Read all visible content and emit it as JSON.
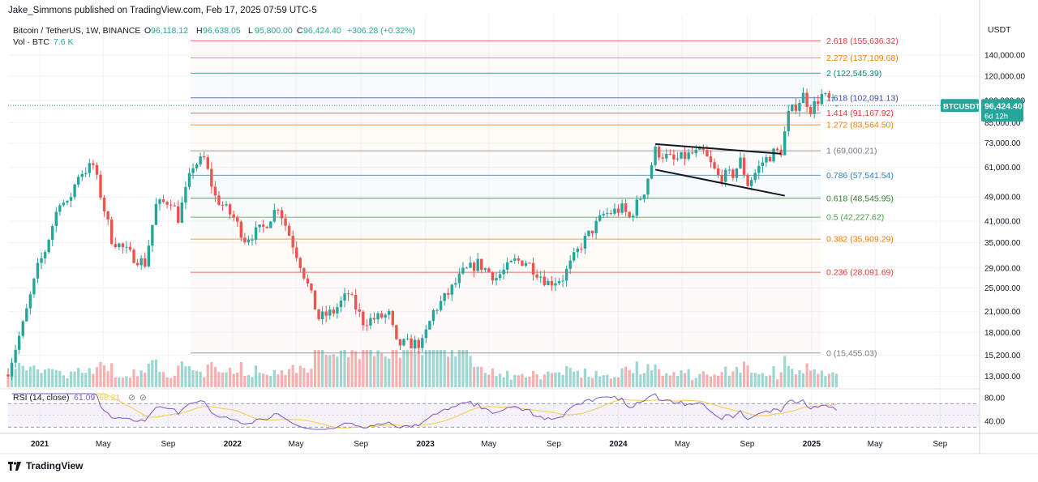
{
  "header": {
    "publisher_text": "Jake_Simmons published on TradingView.com, Feb 17, 2025 07:59 UTC-5",
    "symbol": "Bitcoin / TetherUS, 1W, BINANCE",
    "o_label": "O",
    "o_value": "96,118.12",
    "h_label": "H",
    "h_value": "96,638.05",
    "l_label": "L",
    "l_value": "95,800.00",
    "c_label": "C",
    "c_value": "96,424.40",
    "change": "+306.28 (+0.32%)",
    "vol_label": "Vol · BTC",
    "vol_value": "7.6 K",
    "currency": "USDT"
  },
  "price_badge": {
    "symbol": "BTCUSDT",
    "price": "96,424.40",
    "countdown": "6d 12h"
  },
  "logo_text": "TradingView",
  "colors": {
    "up": "#26a69a",
    "down": "#ef5350",
    "rsi": "#7e57c2",
    "rsi_ma": "#f9c94a"
  },
  "chart_data": {
    "type": "candlestick",
    "y_scale": "log",
    "ylim": [
      12000,
      178000
    ],
    "y_ticks": [
      {
        "value": 140000,
        "label": "140,000.00"
      },
      {
        "value": 120000,
        "label": "120,000.00"
      },
      {
        "value": 100000,
        "label": "100,000.00"
      },
      {
        "value": 85000,
        "label": "85,000.00"
      },
      {
        "value": 73000,
        "label": "73,000.00"
      },
      {
        "value": 61000,
        "label": "61,000.00"
      },
      {
        "value": 49000,
        "label": "49,000.00"
      },
      {
        "value": 41000,
        "label": "41,000.00"
      },
      {
        "value": 35000,
        "label": "35,000.00"
      },
      {
        "value": 29000,
        "label": "29,000.00"
      },
      {
        "value": 25000,
        "label": "25,000.00"
      },
      {
        "value": 21000,
        "label": "21,000.00"
      },
      {
        "value": 18000,
        "label": "18,000.00"
      },
      {
        "value": 15200,
        "label": "15,200.00"
      },
      {
        "value": 13000,
        "label": "13,000.00"
      }
    ],
    "x_ticks": [
      {
        "date": "2021-01",
        "label": "2021",
        "bold": true
      },
      {
        "date": "2021-05",
        "label": "May"
      },
      {
        "date": "2021-09",
        "label": "Sep"
      },
      {
        "date": "2022-01",
        "label": "2022",
        "bold": true
      },
      {
        "date": "2022-05",
        "label": "May"
      },
      {
        "date": "2022-09",
        "label": "Sep"
      },
      {
        "date": "2023-01",
        "label": "2023",
        "bold": true
      },
      {
        "date": "2023-05",
        "label": "May"
      },
      {
        "date": "2023-09",
        "label": "Sep"
      },
      {
        "date": "2024-01",
        "label": "2024",
        "bold": true
      },
      {
        "date": "2024-05",
        "label": "May"
      },
      {
        "date": "2024-09",
        "label": "Sep"
      },
      {
        "date": "2025-01",
        "label": "2025",
        "bold": true
      },
      {
        "date": "2025-05",
        "label": "May"
      },
      {
        "date": "2025-09",
        "label": "Sep"
      }
    ],
    "fib_levels": [
      {
        "ratio": "2.618",
        "price": 155636.32,
        "label": "2.618 (155,636.32)",
        "color": "#e53935"
      },
      {
        "ratio": "2.272",
        "price": 137109.68,
        "label": "2.272 (137,109.68)",
        "color": "#f57c00"
      },
      {
        "ratio": "2",
        "price": 122545.39,
        "label": "2 (122,545.39)",
        "color": "#00897b"
      },
      {
        "ratio": "1.618",
        "price": 102091.13,
        "label": "1.618 (102,091.13)",
        "color": "#3949ab"
      },
      {
        "ratio": "1.414",
        "price": 91167.92,
        "label": "1.414 (91,167.92)",
        "color": "#e53935"
      },
      {
        "ratio": "1.272",
        "price": 83564.5,
        "label": "1.272 (83,564.50)",
        "color": "#f57c00"
      },
      {
        "ratio": "1",
        "price": 69000.21,
        "label": "1 (69,000.21)",
        "color": "#787b86"
      },
      {
        "ratio": "0.786",
        "price": 57541.54,
        "label": "0.786 (57,541.54)",
        "color": "#2f7fc1"
      },
      {
        "ratio": "0.618",
        "price": 48545.95,
        "label": "0.618 (48,545.95)",
        "color": "#2e7d32"
      },
      {
        "ratio": "0.5",
        "price": 42227.62,
        "label": "0.5 (42,227.62)",
        "color": "#43a047"
      },
      {
        "ratio": "0.382",
        "price": 35909.29,
        "label": "0.382 (35,909.29)",
        "color": "#f57c00"
      },
      {
        "ratio": "0.236",
        "price": 28091.69,
        "label": "0.236 (28,091.69)",
        "color": "#e53935"
      },
      {
        "ratio": "0",
        "price": 15455.03,
        "label": "0 (15,455.03)",
        "color": "#787b86"
      }
    ],
    "trendlines": [
      {
        "start": [
          "2024-03-11",
          72500
        ],
        "end": [
          "2024-11-04",
          67500
        ]
      },
      {
        "start": [
          "2024-03-11",
          60000
        ],
        "end": [
          "2024-11-11",
          49500
        ]
      }
    ],
    "close_path": [
      [
        "2020-11-02",
        13600
      ],
      [
        "2020-11-30",
        19000
      ],
      [
        "2020-12-28",
        29000
      ],
      [
        "2021-01-11",
        33000
      ],
      [
        "2021-02-08",
        48000
      ],
      [
        "2021-02-22",
        46000
      ],
      [
        "2021-03-15",
        58000
      ],
      [
        "2021-04-12",
        62000
      ],
      [
        "2021-05-17",
        36000
      ],
      [
        "2021-06-21",
        32000
      ],
      [
        "2021-07-19",
        30000
      ],
      [
        "2021-08-09",
        46000
      ],
      [
        "2021-09-06",
        48000
      ],
      [
        "2021-09-20",
        42000
      ],
      [
        "2021-10-18",
        62000
      ],
      [
        "2021-11-08",
        65000
      ],
      [
        "2021-11-29",
        49000
      ],
      [
        "2022-01-03",
        42000
      ],
      [
        "2022-01-24",
        36000
      ],
      [
        "2022-02-28",
        39000
      ],
      [
        "2022-03-28",
        46000
      ],
      [
        "2022-05-09",
        30000
      ],
      [
        "2022-06-13",
        20000
      ],
      [
        "2022-07-11",
        21000
      ],
      [
        "2022-08-08",
        24000
      ],
      [
        "2022-09-05",
        19500
      ],
      [
        "2022-10-24",
        20500
      ],
      [
        "2022-11-07",
        16500
      ],
      [
        "2022-12-26",
        16600
      ],
      [
        "2023-01-16",
        21000
      ],
      [
        "2023-02-13",
        24000
      ],
      [
        "2023-03-13",
        28000
      ],
      [
        "2023-04-10",
        30000
      ],
      [
        "2023-05-15",
        27000
      ],
      [
        "2023-06-19",
        30500
      ],
      [
        "2023-07-10",
        30500
      ],
      [
        "2023-08-21",
        26000
      ],
      [
        "2023-09-18",
        27000
      ],
      [
        "2023-10-23",
        34500
      ],
      [
        "2023-12-04",
        43000
      ],
      [
        "2024-01-08",
        45000
      ],
      [
        "2024-01-22",
        42000
      ],
      [
        "2024-02-19",
        51500
      ],
      [
        "2024-03-11",
        69000
      ],
      [
        "2024-04-15",
        64000
      ],
      [
        "2024-05-20",
        67500
      ],
      [
        "2024-06-10",
        68000
      ],
      [
        "2024-07-08",
        57000
      ],
      [
        "2024-08-05",
        58000
      ],
      [
        "2024-08-19",
        64000
      ],
      [
        "2024-09-02",
        54000
      ],
      [
        "2024-09-30",
        63500
      ],
      [
        "2024-10-21",
        68000
      ],
      [
        "2024-11-04",
        69000
      ],
      [
        "2024-11-18",
        90000
      ],
      [
        "2024-12-16",
        104000
      ],
      [
        "2024-12-30",
        94000
      ],
      [
        "2025-01-20",
        104000
      ],
      [
        "2025-02-17",
        96424
      ]
    ],
    "rsi": {
      "label": "RSI (14, close)",
      "value": "61.09",
      "ma_value": "68.21",
      "ticks": [
        {
          "value": 80,
          "label": "80.00"
        },
        {
          "value": 40,
          "label": "40.00"
        }
      ],
      "upper_band": 70,
      "lower_band": 30
    },
    "last_price": 96424.4
  }
}
